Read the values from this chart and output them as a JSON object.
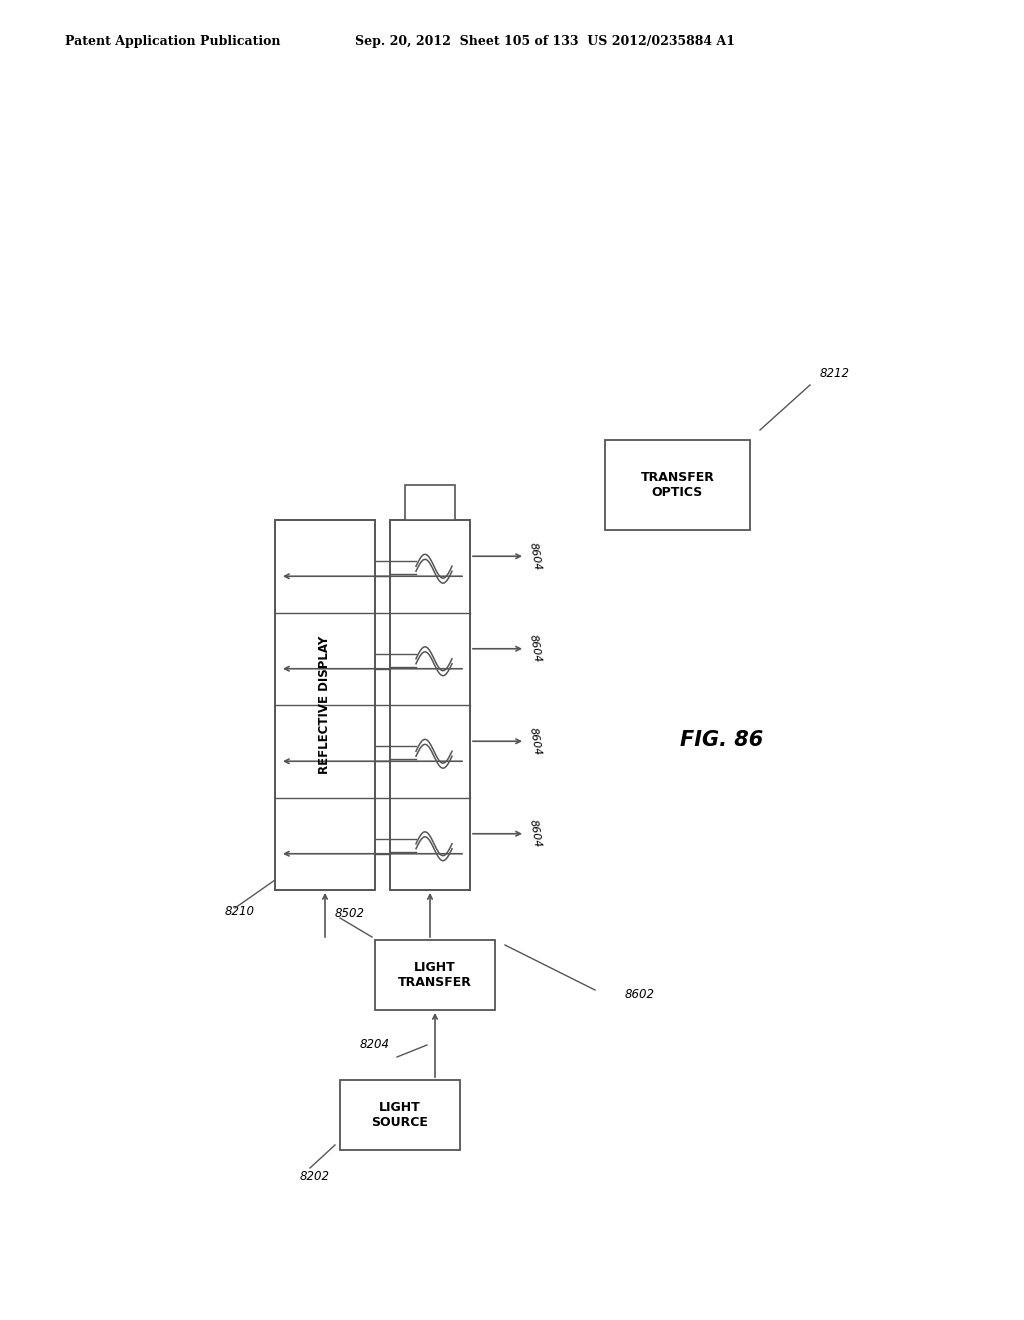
{
  "bg_color": "#ffffff",
  "lc": "#555555",
  "header_left": "Patent Application Publication",
  "header_right": "Sep. 20, 2012  Sheet 105 of 133  US 2012/0235884 A1",
  "fig_label": "FIG. 86",
  "light_source_label": "LIGHT\nSOURCE",
  "light_transfer_label": "LIGHT\nTRANSFER",
  "reflective_display_label": "REFLECTIVE DISPLAY",
  "transfer_optics_label": "TRANSFER\nOPTICS",
  "r8202": "8202",
  "r8204": "8204",
  "r8210": "8210",
  "r8502": "8502",
  "r8602": "8602",
  "r8604": "8604",
  "r8212": "8212"
}
